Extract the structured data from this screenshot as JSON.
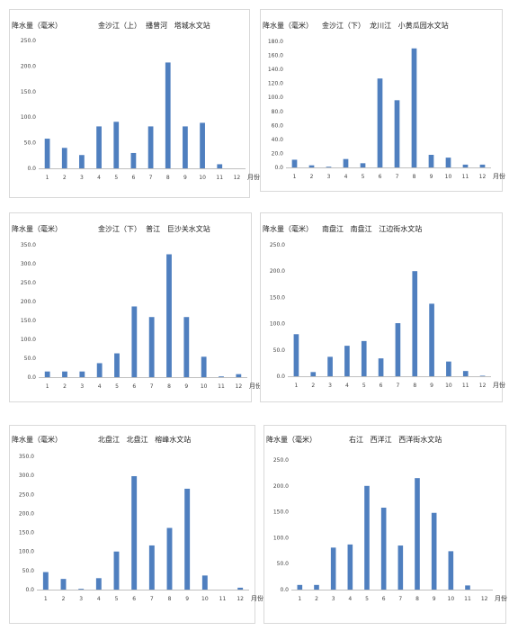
{
  "chart_data": [
    {
      "type": "bar",
      "title": "金沙江（上）  播曾河   塔城水文站",
      "ylabel": "降水量（毫米）",
      "xlabel": "月份",
      "categories": [
        "1",
        "2",
        "3",
        "4",
        "5",
        "6",
        "7",
        "8",
        "9",
        "10",
        "11",
        "12"
      ],
      "values": [
        58,
        40,
        26,
        82,
        91,
        30,
        82,
        207,
        82,
        89,
        8,
        0
      ],
      "ylim": [
        0,
        250
      ],
      "yticks": [
        "0.0",
        "50.0",
        "100.0",
        "150.0",
        "200.0",
        "250.0"
      ],
      "bar_color": "#4f7fbf"
    },
    {
      "type": "bar",
      "title": "金沙江（下）  龙川江   小黄瓜园水文站",
      "ylabel": "降水量（毫米）",
      "xlabel": "月份",
      "categories": [
        "1",
        "2",
        "3",
        "4",
        "5",
        "6",
        "7",
        "8",
        "9",
        "10",
        "11",
        "12"
      ],
      "values": [
        11,
        3,
        1,
        12,
        6,
        127,
        96,
        170,
        18,
        14,
        4,
        4
      ],
      "ylim": [
        0,
        180
      ],
      "yticks": [
        "0.0",
        "20.0",
        "40.0",
        "60.0",
        "80.0",
        "100.0",
        "120.0",
        "140.0",
        "160.0",
        "180.0"
      ],
      "bar_color": "#4f7fbf"
    },
    {
      "type": "bar",
      "title": "金沙江（下）  普江   巨沙关水文站",
      "ylabel": "降水量（毫米）",
      "xlabel": "月份",
      "categories": [
        "1",
        "2",
        "3",
        "4",
        "5",
        "6",
        "7",
        "8",
        "9",
        "10",
        "11",
        "12"
      ],
      "values": [
        15,
        15,
        15,
        37,
        63,
        187,
        159,
        325,
        159,
        54,
        2,
        8
      ],
      "ylim": [
        0,
        350
      ],
      "yticks": [
        "0.0",
        "50.0",
        "100.0",
        "150.0",
        "200.0",
        "250.0",
        "300.0",
        "350.0"
      ],
      "bar_color": "#4f7fbf"
    },
    {
      "type": "bar",
      "title": "南盘江   南盘江   江边街水文站",
      "ylabel": "降水量（毫米）",
      "xlabel": "月份",
      "categories": [
        "1",
        "2",
        "3",
        "4",
        "5",
        "6",
        "7",
        "8",
        "9",
        "10",
        "11",
        "12"
      ],
      "values": [
        80,
        8,
        37,
        58,
        67,
        34,
        101,
        200,
        138,
        28,
        10,
        1
      ],
      "ylim": [
        0,
        250
      ],
      "yticks": [
        "0.0",
        "50.0",
        "100.0",
        "150.0",
        "200.0",
        "250.0"
      ],
      "bar_color": "#4f7fbf"
    },
    {
      "type": "bar",
      "title": "北盘江   北盘江   榕峰水文站",
      "ylabel": "降水量（毫米）",
      "xlabel": "月份",
      "categories": [
        "1",
        "2",
        "3",
        "4",
        "5",
        "6",
        "7",
        "8",
        "9",
        "10",
        "11",
        "12"
      ],
      "values": [
        46,
        28,
        2,
        30,
        100,
        298,
        116,
        162,
        265,
        37,
        0,
        5
      ],
      "ylim": [
        0,
        350
      ],
      "yticks": [
        "0.0",
        "50.0",
        "100.0",
        "150.0",
        "200.0",
        "250.0",
        "300.0",
        "350.0"
      ],
      "bar_color": "#4f7fbf"
    },
    {
      "type": "bar",
      "title": "右江   西洋江   西洋街水文站",
      "ylabel": "降水量（毫米）",
      "xlabel": "月份",
      "categories": [
        "1",
        "2",
        "3",
        "4",
        "5",
        "6",
        "7",
        "8",
        "9",
        "10",
        "11",
        "12"
      ],
      "values": [
        9,
        9,
        81,
        87,
        200,
        158,
        85,
        215,
        148,
        74,
        8,
        0
      ],
      "ylim": [
        0,
        250
      ],
      "yticks": [
        "0.0",
        "50.0",
        "100.0",
        "150.0",
        "200.0",
        "250.0"
      ],
      "bar_color": "#4f7fbf"
    }
  ]
}
